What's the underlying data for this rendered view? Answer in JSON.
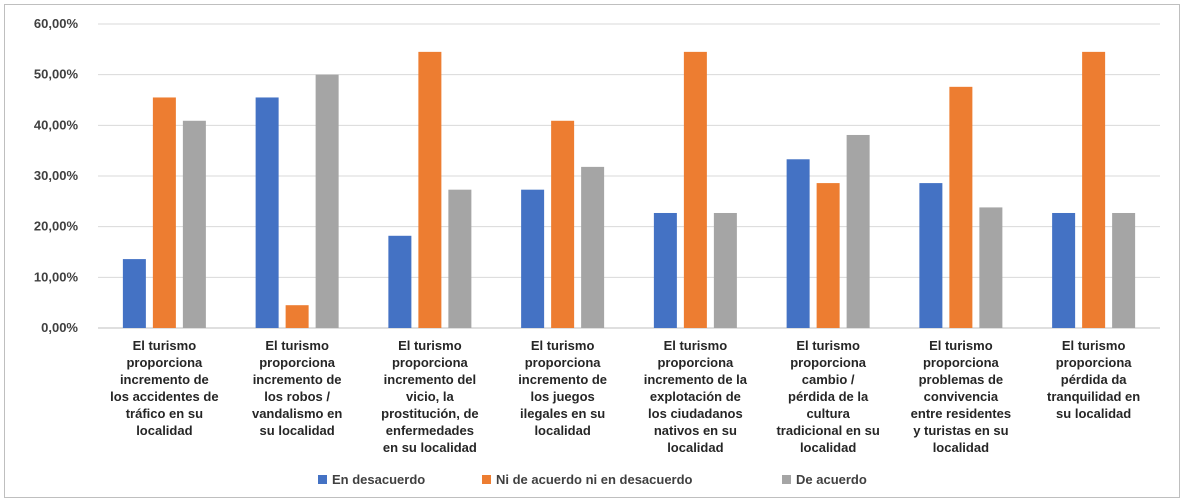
{
  "chart_data": {
    "type": "bar",
    "title": "",
    "xlabel": "",
    "ylabel": "",
    "ylim": [
      0,
      0.6
    ],
    "yticks": [
      "0,00%",
      "10,00%",
      "20,00%",
      "30,00%",
      "40,00%",
      "50,00%",
      "60,00%"
    ],
    "grid": true,
    "legend_position": "bottom",
    "categories": [
      [
        "El turismo",
        "proporciona",
        "incremento de",
        "los accidentes de",
        "tráfico en su",
        "localidad"
      ],
      [
        "El turismo",
        "proporciona",
        "incremento de",
        "los robos /",
        "vandalismo en",
        "su localidad"
      ],
      [
        "El turismo",
        "proporciona",
        "incremento del",
        "vicio, la",
        "prostitución, de",
        "enfermedades",
        "en su localidad"
      ],
      [
        "El turismo",
        "proporciona",
        "incremento de",
        "los juegos",
        "ilegales en su",
        "localidad"
      ],
      [
        "El turismo",
        "proporciona",
        "incremento de la",
        "explotación de",
        "los ciudadanos",
        "nativos en su",
        "localidad"
      ],
      [
        "El turismo",
        "proporciona",
        "cambio /",
        "pérdida de la",
        "cultura",
        "tradicional en su",
        "localidad"
      ],
      [
        "El turismo",
        "proporciona",
        "problemas de",
        "convivencia",
        "entre residentes",
        "y turistas en su",
        "localidad"
      ],
      [
        "El turismo",
        "proporciona",
        "pérdida da",
        "tranquilidad en",
        "su localidad"
      ]
    ],
    "series": [
      {
        "name": "En desacuerdo",
        "color": "#4472c4",
        "values": [
          0.136,
          0.455,
          0.182,
          0.273,
          0.227,
          0.333,
          0.286,
          0.227
        ]
      },
      {
        "name": "Ni de acuerdo ni  en desacuerdo",
        "color": "#ed7d31",
        "values": [
          0.455,
          0.045,
          0.545,
          0.409,
          0.545,
          0.286,
          0.476,
          0.545
        ]
      },
      {
        "name": "De acuerdo",
        "color": "#a5a5a5",
        "values": [
          0.409,
          0.5,
          0.273,
          0.318,
          0.227,
          0.381,
          0.238,
          0.227
        ]
      }
    ]
  }
}
